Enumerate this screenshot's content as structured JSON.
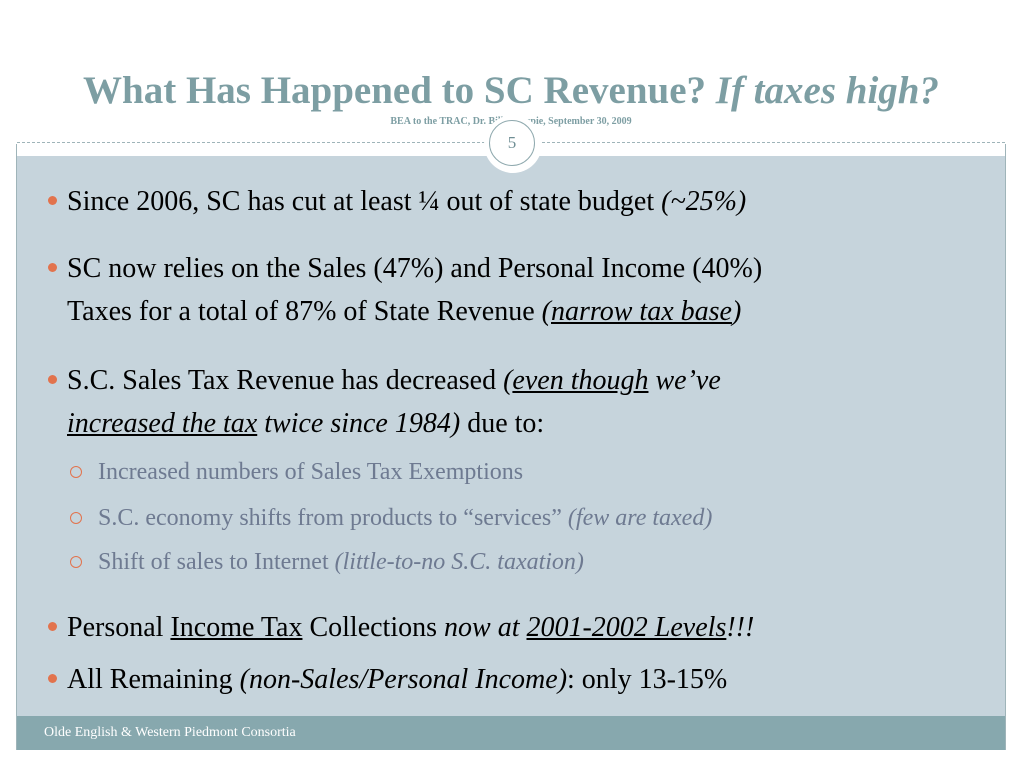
{
  "slide": {
    "title": "What Has Happened to SC Revenue?",
    "title_italic": "If taxes high?",
    "subtitle": "BEA to the TRAC, Dr. Bill Gillespie, September 30, 2009",
    "slide_number": "5",
    "footer": "Olde English & Western Piedmont Consortia"
  },
  "bullets": {
    "b1": {
      "text": "Since 2006, SC has cut at least ¼ out of state budget ",
      "italic": "(~25%)"
    },
    "b2": {
      "line1": "SC now relies on the Sales (47%) and Personal Income (40%)",
      "line2": "Taxes for a total of 87% of State Revenue ",
      "paren_open": "(",
      "underlined": "narrow tax base",
      "paren_close": ")"
    },
    "b3": {
      "line1": "S.C. Sales Tax Revenue has decreased ",
      "paren_open": "(",
      "underlined1": "even though",
      "italic1": " we’ve",
      "underlined2": "increased the tax",
      "italic2": " twice since 1984)",
      "tail": " due to:"
    },
    "b4": {
      "pre": "Personal ",
      "underlined": "Income Tax",
      "mid": " Collections ",
      "italic": "now at ",
      "underlined_italic": "2001-2002 Levels",
      "exclaim": "!!!"
    },
    "b5": {
      "pre": "All Remaining ",
      "italic": "(non-Sales/Personal Income)",
      "tail": ": only 13-15%"
    }
  },
  "subbullets": [
    {
      "text": "Increased numbers of Sales Tax Exemptions",
      "italic": ""
    },
    {
      "text": "S.C. economy shifts from products to “services” ",
      "italic": "(few are taxed)"
    },
    {
      "text": "Shift of sales to Internet ",
      "italic": "(little-to-no S.C. taxation)"
    }
  ],
  "colors": {
    "title": "#7d9ea3",
    "content_bg": "#c6d4dc",
    "footer_bg": "#87a8ae",
    "bullet_accent": "#e2734d",
    "subbullet_text": "#6e7a91"
  }
}
